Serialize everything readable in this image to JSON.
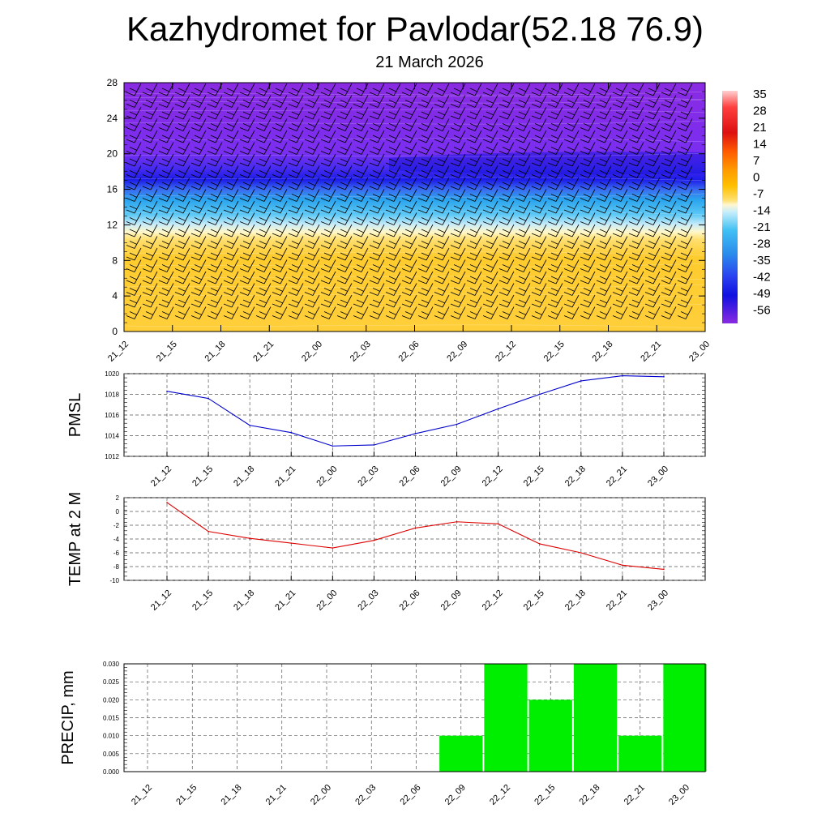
{
  "title": "Kazhydromet for Pavlodar(52.18 76.9)",
  "subtitle": "21 March 2026",
  "time_labels": [
    "21_12",
    "21_15",
    "21_18",
    "21_21",
    "22_00",
    "22_03",
    "22_06",
    "22_09",
    "22_12",
    "22_15",
    "22_18",
    "22_21",
    "23_00"
  ],
  "colors": {
    "pmsl_line": "#0000cc",
    "temp_line": "#dd0000",
    "precip_bar": "#00ee00",
    "grid": "#555555",
    "axis": "#000000"
  },
  "chart_data": [
    {
      "type": "heatmap",
      "name": "temperature cross-section with wind barbs",
      "y_ticks": [
        0,
        4,
        8,
        12,
        16,
        20,
        24,
        28
      ],
      "ylim": [
        0,
        28
      ],
      "colorbar_labels": [
        "35",
        "28",
        "21",
        "14",
        "7",
        "0",
        "-7",
        "-14",
        "-21",
        "-28",
        "-35",
        "-42",
        "-49",
        "-56"
      ],
      "layers": [
        {
          "from": 0,
          "to": 10.8,
          "value_range": "-7 to 0",
          "color": "#ffcc33"
        },
        {
          "from": 10.8,
          "to": 12,
          "value_range": "-14 to -7",
          "color": "#fff3b0"
        },
        {
          "from": 12,
          "to": 16.5,
          "value_range": "-35 to -14",
          "color": "#36b4f0"
        },
        {
          "from": 16.5,
          "to": 19,
          "value_range": "-56 to -42",
          "color": "#2020ee"
        },
        {
          "from": 19,
          "to": 28,
          "value_range": "-56 to -49",
          "color": "#8a2be2"
        }
      ]
    },
    {
      "type": "line",
      "ylabel": "PMSL",
      "ylim": [
        1012,
        1020
      ],
      "y_ticks": [
        1012,
        1014,
        1016,
        1018,
        1020
      ],
      "values": [
        1018.3,
        1017.6,
        1015.0,
        1014.3,
        1013.0,
        1013.1,
        1014.2,
        1015.1,
        1016.6,
        1018.0,
        1019.3,
        1019.8,
        1019.7
      ]
    },
    {
      "type": "line",
      "ylabel": "TEMP at 2 M",
      "ylim": [
        -10,
        2
      ],
      "y_ticks": [
        2,
        0,
        -2,
        -4,
        -6,
        -8,
        -10
      ],
      "values": [
        1.3,
        -2.9,
        -3.9,
        -4.6,
        -5.3,
        -4.2,
        -2.4,
        -1.5,
        -1.8,
        -4.7,
        -6.0,
        -7.8,
        -8.4
      ]
    },
    {
      "type": "bar",
      "ylabel": "PRECIP, mm",
      "ylim": [
        0,
        0.03
      ],
      "y_ticks": [
        "0.000",
        "0.005",
        "0.010",
        "0.015",
        "0.020",
        "0.025",
        "0.030"
      ],
      "values": [
        0,
        0,
        0,
        0,
        0,
        0,
        0,
        0.01,
        0.03,
        0.02,
        0.03,
        0.01,
        0.03
      ]
    }
  ]
}
